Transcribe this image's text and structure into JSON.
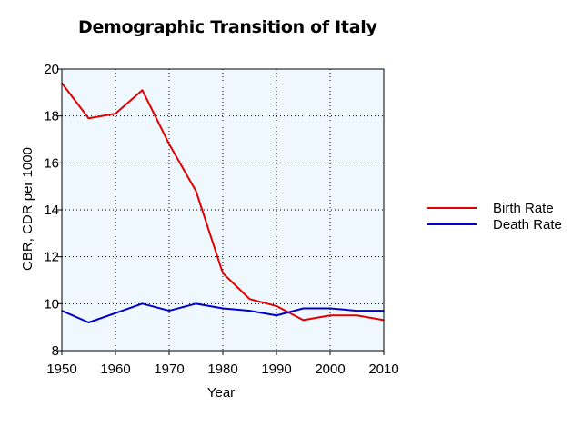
{
  "colors": {
    "plot_background": "#f0f8ff",
    "birth_rate": "#e00000",
    "death_rate": "#0000c8"
  },
  "chart_data": {
    "type": "line",
    "title": "Demographic Transition of Italy",
    "xlabel": "Year",
    "ylabel": "CBR, CDR per 1000",
    "xlim": [
      1950,
      2010
    ],
    "ylim": [
      8,
      20
    ],
    "xticks": [
      "1950",
      "1960",
      "1970",
      "1980",
      "1990",
      "2000",
      "2010"
    ],
    "yticks": [
      "8",
      "10",
      "12",
      "14",
      "16",
      "18",
      "20"
    ],
    "grid": true,
    "legend_position": "right",
    "x": [
      1950,
      1955,
      1960,
      1965,
      1970,
      1975,
      1980,
      1985,
      1990,
      1995,
      2000,
      2005,
      2010
    ],
    "series": [
      {
        "name": "Birth Rate",
        "color": "#e00000",
        "values": [
          19.4,
          17.9,
          18.1,
          19.1,
          16.8,
          14.8,
          11.3,
          10.2,
          9.9,
          9.3,
          9.5,
          9.5,
          9.3
        ]
      },
      {
        "name": "Death Rate",
        "color": "#0000c8",
        "values": [
          9.7,
          9.2,
          9.6,
          10.0,
          9.7,
          10.0,
          9.8,
          9.7,
          9.5,
          9.8,
          9.8,
          9.7,
          9.7
        ]
      }
    ]
  }
}
